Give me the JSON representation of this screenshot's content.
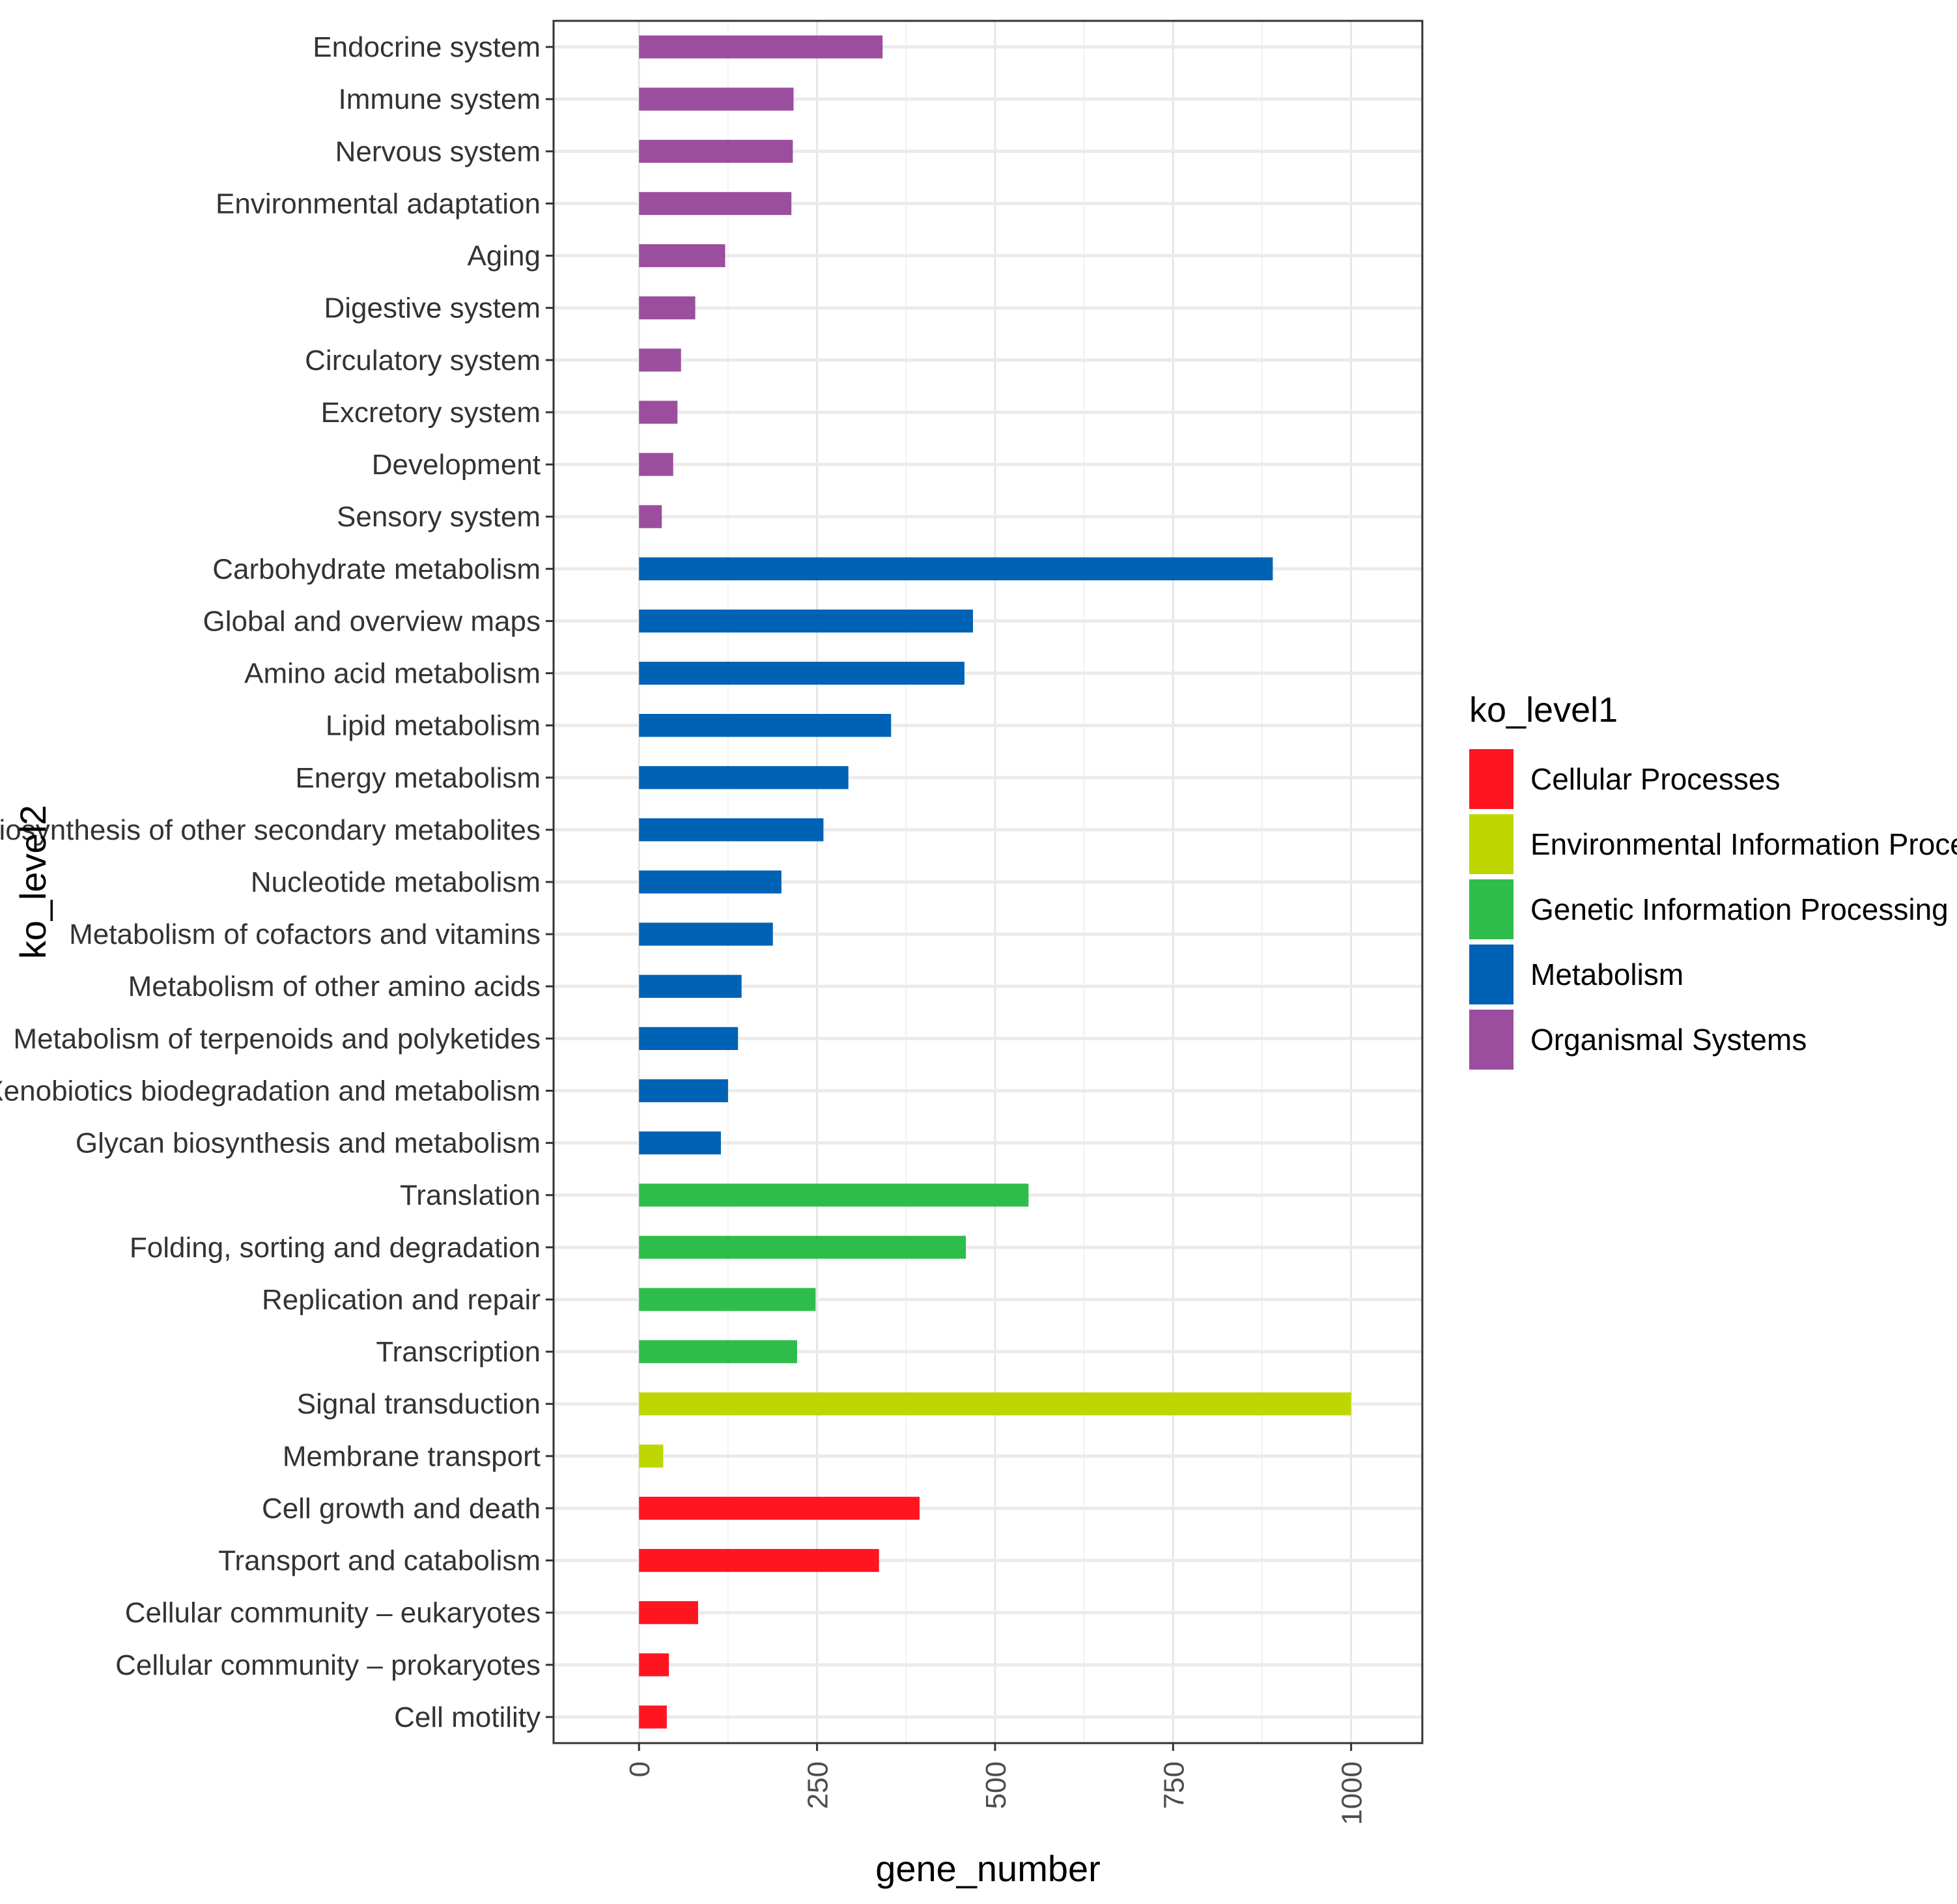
{
  "chart_data": {
    "type": "bar",
    "orientation": "horizontal",
    "xlabel": "gene_number",
    "ylabel": "ko_level2",
    "xlim": [
      -120,
      1100
    ],
    "xticks": [
      0,
      250,
      500,
      750,
      1000
    ],
    "xtick_labels": [
      "0",
      "250",
      "500",
      "750",
      "1000"
    ],
    "grid": true,
    "legend": {
      "title": "ko_level1",
      "position": "right",
      "entries": [
        {
          "name": "Cellular Processes",
          "color": "#FF1520"
        },
        {
          "name": "Environmental Information Processing",
          "color": "#BFD700"
        },
        {
          "name": "Genetic Information Processing",
          "color": "#2EBD4B"
        },
        {
          "name": "Metabolism",
          "color": "#0062B4"
        },
        {
          "name": "Organismal Systems",
          "color": "#9B4E9E"
        }
      ]
    },
    "bars": [
      {
        "category": "Endocrine system",
        "value": 342,
        "group": "Organismal Systems"
      },
      {
        "category": "Immune system",
        "value": 217,
        "group": "Organismal Systems"
      },
      {
        "category": "Nervous system",
        "value": 216,
        "group": "Organismal Systems"
      },
      {
        "category": "Environmental adaptation",
        "value": 214,
        "group": "Organismal Systems"
      },
      {
        "category": "Aging",
        "value": 121,
        "group": "Organismal Systems"
      },
      {
        "category": "Digestive system",
        "value": 79,
        "group": "Organismal Systems"
      },
      {
        "category": "Circulatory system",
        "value": 59,
        "group": "Organismal Systems"
      },
      {
        "category": "Excretory system",
        "value": 54,
        "group": "Organismal Systems"
      },
      {
        "category": "Development",
        "value": 48,
        "group": "Organismal Systems"
      },
      {
        "category": "Sensory system",
        "value": 32,
        "group": "Organismal Systems"
      },
      {
        "category": "Carbohydrate metabolism",
        "value": 890,
        "group": "Metabolism"
      },
      {
        "category": "Global and overview maps",
        "value": 469,
        "group": "Metabolism"
      },
      {
        "category": "Amino acid metabolism",
        "value": 457,
        "group": "Metabolism"
      },
      {
        "category": "Lipid metabolism",
        "value": 354,
        "group": "Metabolism"
      },
      {
        "category": "Energy metabolism",
        "value": 294,
        "group": "Metabolism"
      },
      {
        "category": "Biosynthesis of other secondary metabolites",
        "value": 259,
        "group": "Metabolism"
      },
      {
        "category": "Nucleotide metabolism",
        "value": 200,
        "group": "Metabolism"
      },
      {
        "category": "Metabolism of cofactors and vitamins",
        "value": 188,
        "group": "Metabolism"
      },
      {
        "category": "Metabolism of other amino acids",
        "value": 144,
        "group": "Metabolism"
      },
      {
        "category": "Metabolism of terpenoids and polyketides",
        "value": 139,
        "group": "Metabolism"
      },
      {
        "category": "Xenobiotics biodegradation and metabolism",
        "value": 125,
        "group": "Metabolism"
      },
      {
        "category": "Glycan biosynthesis and metabolism",
        "value": 115,
        "group": "Metabolism"
      },
      {
        "category": "Translation",
        "value": 547,
        "group": "Genetic Information Processing"
      },
      {
        "category": "Folding, sorting and degradation",
        "value": 459,
        "group": "Genetic Information Processing"
      },
      {
        "category": "Replication and repair",
        "value": 248,
        "group": "Genetic Information Processing"
      },
      {
        "category": "Transcription",
        "value": 222,
        "group": "Genetic Information Processing"
      },
      {
        "category": "Signal transduction",
        "value": 1000,
        "group": "Environmental Information Processing"
      },
      {
        "category": "Membrane transport",
        "value": 34,
        "group": "Environmental Information Processing"
      },
      {
        "category": "Cell growth and death",
        "value": 394,
        "group": "Cellular Processes"
      },
      {
        "category": "Transport and catabolism",
        "value": 337,
        "group": "Cellular Processes"
      },
      {
        "category": "Cellular community – eukaryotes",
        "value": 83,
        "group": "Cellular Processes"
      },
      {
        "category": "Cellular community – prokaryotes",
        "value": 42,
        "group": "Cellular Processes"
      },
      {
        "category": "Cell motility",
        "value": 39,
        "group": "Cellular Processes"
      }
    ]
  }
}
